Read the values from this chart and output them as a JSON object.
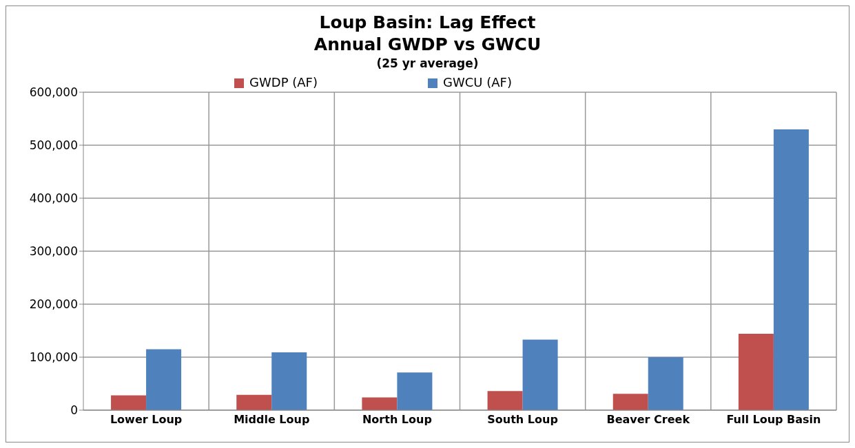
{
  "chart_data": {
    "type": "bar",
    "title": "Loup Basin: Lag Effect\nAnnual GWDP vs GWCU",
    "subtitle": "(25 yr average)",
    "categories": [
      "Lower Loup",
      "Middle Loup",
      "North Loup",
      "South Loup",
      "Beaver Creek",
      "Full Loup Basin"
    ],
    "series": [
      {
        "name": "GWDP (AF)",
        "color": "#c0504d",
        "values": [
          28000,
          29000,
          24000,
          36000,
          31000,
          144000
        ]
      },
      {
        "name": "GWCU (AF)",
        "color": "#4f81bd",
        "values": [
          115000,
          109000,
          71000,
          133000,
          100000,
          530000
        ]
      }
    ],
    "ylim": [
      0,
      600000
    ],
    "yticks": [
      0,
      {
        "value": 100000,
        "label": "100,000"
      },
      {
        "value": 200000,
        "label": "200,000"
      },
      {
        "value": 300000,
        "label": "300,000"
      },
      {
        "value": 400000,
        "label": "400,000"
      },
      {
        "value": 500000,
        "label": "500,000"
      },
      {
        "value": 600000,
        "label": "600,000"
      }
    ],
    "grid": true,
    "legend": "top"
  }
}
